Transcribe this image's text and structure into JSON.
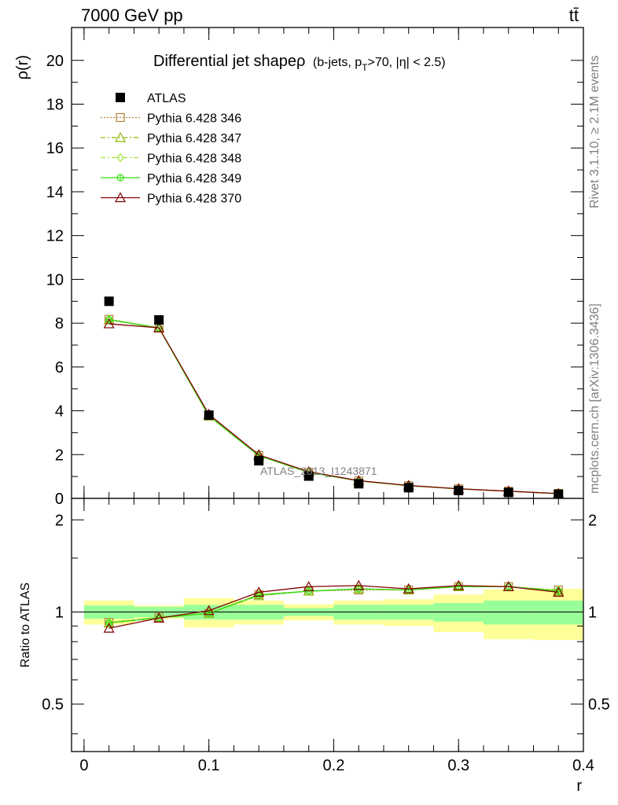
{
  "header": {
    "left": "7000 GeV pp",
    "right": "tt̄"
  },
  "side_labels": {
    "rivet": "Rivet 3.1.10, ≥ 2.1M events",
    "mcplots": "mcplots.cern.ch [arXiv:1306.3436]"
  },
  "watermark": "ATLAS_2013_I1243871",
  "colors": {
    "atlas": "#000000",
    "p346": "#b5813a",
    "p347": "#8db600",
    "p348": "#9fe53f",
    "p349": "#33dd11",
    "p370": "#800000",
    "band_inner": "#99ff99",
    "band_outer": "#ffff99"
  },
  "chart_data": [
    {
      "type": "scatter",
      "title": "Differential jet shapeρ",
      "title_sub": "(b-jets, p",
      "title_sub_subscript": "T",
      "title_sub_rest": ">70, |η| < 2.5)",
      "ylabel": "ρ(r)",
      "xlim": [
        -0.01,
        0.4
      ],
      "ylim": [
        0,
        21.5
      ],
      "yticks": [
        0,
        2,
        4,
        6,
        8,
        10,
        12,
        14,
        16,
        18,
        20
      ],
      "ytick_labels": [
        "0",
        "2",
        "4",
        "6",
        "8",
        "10",
        "12",
        "14",
        "16",
        "18",
        "20"
      ],
      "x": [
        0.02,
        0.06,
        0.1,
        0.14,
        0.18,
        0.22,
        0.26,
        0.3,
        0.34,
        0.38
      ],
      "legend": "top-left",
      "series": [
        {
          "name": "ATLAS",
          "marker": "square-filled",
          "values": [
            9.0,
            8.15,
            3.8,
            1.72,
            1.02,
            0.67,
            0.49,
            0.36,
            0.27,
            0.19
          ]
        },
        {
          "name": "Pythia 6.428 346",
          "marker": "square-open",
          "line": "dotted",
          "values": [
            8.18,
            7.8,
            3.77,
            1.96,
            1.19,
            0.8,
            0.58,
            0.44,
            0.33,
            0.23
          ]
        },
        {
          "name": "Pythia 6.428 347",
          "marker": "triangle-open",
          "line": "dashdot",
          "values": [
            8.15,
            7.78,
            3.76,
            1.95,
            1.19,
            0.8,
            0.58,
            0.44,
            0.33,
            0.22
          ]
        },
        {
          "name": "Pythia 6.428 348",
          "marker": "diamond-open",
          "line": "dashdot",
          "values": [
            8.17,
            7.79,
            3.77,
            1.96,
            1.19,
            0.8,
            0.58,
            0.44,
            0.33,
            0.22
          ]
        },
        {
          "name": "Pythia 6.428 349",
          "marker": "circle-cross",
          "line": "solid",
          "values": [
            8.16,
            7.78,
            3.76,
            1.95,
            1.19,
            0.8,
            0.58,
            0.44,
            0.33,
            0.22
          ]
        },
        {
          "name": "Pythia 6.428 370",
          "marker": "triangle-open",
          "line": "solid",
          "values": [
            7.97,
            7.79,
            3.84,
            1.99,
            1.22,
            0.81,
            0.59,
            0.44,
            0.33,
            0.22
          ]
        }
      ]
    },
    {
      "type": "line",
      "ylabel": "Ratio to ATLAS",
      "xlabel": "r",
      "xlim": [
        -0.01,
        0.4
      ],
      "ylim": [
        0.35,
        2.35
      ],
      "log_y": true,
      "xticks": [
        0,
        0.1,
        0.2,
        0.3,
        0.4
      ],
      "xtick_labels": [
        "0",
        "0.1",
        "0.2",
        "0.3",
        "0.4"
      ],
      "yticks": [
        0.5,
        1,
        2
      ],
      "ytick_labels": [
        "0.5",
        "1",
        "2"
      ],
      "bin_edges": [
        0,
        0.04,
        0.08,
        0.12,
        0.16,
        0.2,
        0.24,
        0.28,
        0.32,
        0.36,
        0.4
      ],
      "band_inner": [
        [
          0.95,
          1.05
        ],
        [
          0.96,
          1.04
        ],
        [
          0.945,
          1.055
        ],
        [
          0.945,
          1.055
        ],
        [
          0.97,
          1.03
        ],
        [
          0.945,
          1.055
        ],
        [
          0.945,
          1.055
        ],
        [
          0.93,
          1.07
        ],
        [
          0.91,
          1.09
        ],
        [
          0.91,
          1.09
        ]
      ],
      "band_outer": [
        [
          0.91,
          1.09
        ],
        [
          0.95,
          1.05
        ],
        [
          0.89,
          1.11
        ],
        [
          0.91,
          1.09
        ],
        [
          0.94,
          1.06
        ],
        [
          0.91,
          1.09
        ],
        [
          0.9,
          1.1
        ],
        [
          0.86,
          1.14
        ],
        [
          0.815,
          1.185
        ],
        [
          0.81,
          1.19
        ]
      ],
      "x": [
        0.02,
        0.06,
        0.1,
        0.14,
        0.18,
        0.22,
        0.26,
        0.3,
        0.34,
        0.38
      ],
      "series": [
        {
          "name": "Pythia 6.428 346",
          "values": [
            0.925,
            0.96,
            0.99,
            1.14,
            1.17,
            1.18,
            1.18,
            1.21,
            1.21,
            1.18
          ]
        },
        {
          "name": "Pythia 6.428 347",
          "values": [
            0.92,
            0.955,
            0.99,
            1.13,
            1.17,
            1.19,
            1.18,
            1.21,
            1.21,
            1.17
          ]
        },
        {
          "name": "Pythia 6.428 348",
          "values": [
            0.925,
            0.96,
            0.99,
            1.14,
            1.17,
            1.19,
            1.18,
            1.21,
            1.21,
            1.18
          ]
        },
        {
          "name": "Pythia 6.428 349",
          "values": [
            0.922,
            0.957,
            0.99,
            1.135,
            1.17,
            1.19,
            1.18,
            1.21,
            1.21,
            1.17
          ]
        },
        {
          "name": "Pythia 6.428 370",
          "values": [
            0.885,
            0.955,
            1.01,
            1.16,
            1.21,
            1.22,
            1.19,
            1.22,
            1.21,
            1.16
          ]
        }
      ]
    }
  ]
}
